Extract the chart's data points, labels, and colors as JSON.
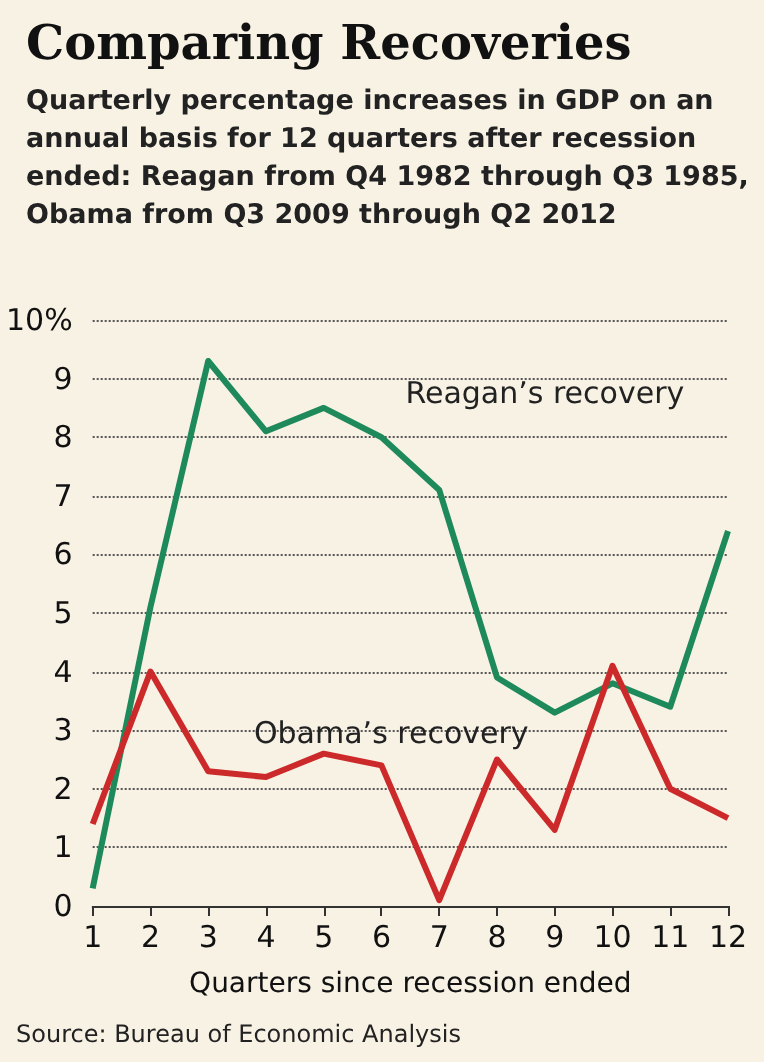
{
  "chart_data": {
    "type": "line",
    "title": "Comparing Recoveries",
    "subtitle": "Quarterly percentage increases in GDP on an annual basis for 12 quarters after recession ended: Reagan from Q4 1982 through Q3 1985, Obama from Q3 2009 through Q2 2012",
    "xlabel": "Quarters since recession ended",
    "annotations": [
      "Source: Bureau of Economic Analysis"
    ],
    "x": [
      1,
      2,
      3,
      4,
      5,
      6,
      7,
      8,
      9,
      10,
      11,
      12
    ],
    "series": [
      {
        "name": "Reagan’s recovery",
        "color": "#1e8a5c",
        "values": [
          0.3,
          5.1,
          9.3,
          8.1,
          8.5,
          8.0,
          7.1,
          3.9,
          3.3,
          3.8,
          3.4,
          6.4
        ]
      },
      {
        "name": "Obama’s recovery",
        "color": "#cc2a2a",
        "values": [
          1.4,
          4.0,
          2.3,
          2.2,
          2.6,
          2.4,
          0.1,
          2.5,
          1.3,
          4.1,
          2.0,
          1.5
        ]
      }
    ],
    "xlim": [
      1,
      12
    ],
    "xticks": [
      1,
      2,
      3,
      4,
      5,
      6,
      7,
      8,
      9,
      10,
      11,
      12
    ],
    "ylim": [
      0,
      10
    ],
    "yticks": [
      0,
      1,
      2,
      3,
      4,
      5,
      6,
      7,
      8,
      9,
      {
        "value": 10,
        "label": "10%"
      }
    ],
    "grid": "y",
    "legend": false,
    "marker": "none",
    "line_style": "solid"
  }
}
